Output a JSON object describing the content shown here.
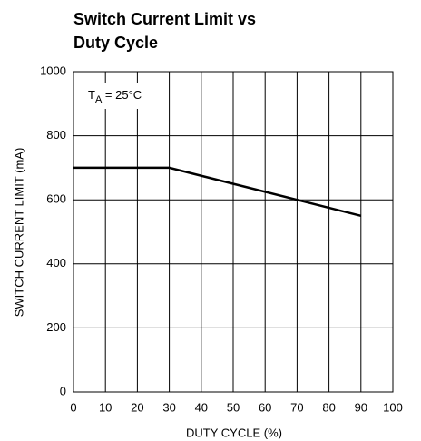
{
  "chart_data": {
    "type": "line",
    "title": [
      "Switch Current Limit vs",
      "Duty Cycle"
    ],
    "x_label": "DUTY CYCLE (%)",
    "y_label": "SWITCH CURRENT LIMIT (mA)",
    "annotation": {
      "main": "T",
      "sub": "A",
      "rest": " = 25°C"
    },
    "x": [
      0,
      30,
      90
    ],
    "series": [
      {
        "color": "#000000",
        "values": [
          700,
          700,
          550
        ]
      }
    ],
    "xlim": [
      0,
      100
    ],
    "xticks": [
      0,
      10,
      20,
      30,
      40,
      50,
      60,
      70,
      80,
      90,
      100
    ],
    "ylim": [
      0,
      1000
    ],
    "yticks": [
      0,
      200,
      400,
      600,
      800,
      1000
    ],
    "grid": true
  }
}
